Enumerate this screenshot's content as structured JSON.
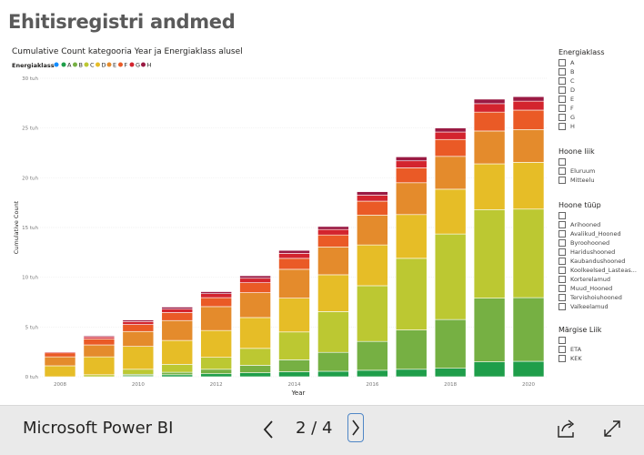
{
  "report": {
    "title": "Ehitisregistri andmed"
  },
  "chart": {
    "title": "Cumulative Count kategooria Year ja Energiaklass alusel",
    "legend_title": "Energiaklass",
    "xlabel": "Year",
    "ylabel": "Cumulative Count",
    "y_ticks": [
      "0 tuh",
      "5 tuh",
      "10 tuh",
      "15 tuh",
      "20 tuh",
      "25 tuh",
      "30 tuh"
    ],
    "x_ticks": [
      "2008",
      "2010",
      "2012",
      "2014",
      "2016",
      "2018",
      "2020"
    ]
  },
  "chart_data": {
    "type": "bar",
    "stacked": true,
    "x": [
      2008,
      2009,
      2010,
      2011,
      2012,
      2013,
      2014,
      2015,
      2016,
      2017,
      2018,
      2019,
      2020
    ],
    "x_tick_labels": [
      "2008",
      "2010",
      "2012",
      "2014",
      "2016",
      "2018",
      "2020"
    ],
    "ylim": [
      0,
      30000
    ],
    "y_tick_labels": [
      "0 tuh",
      "5 tuh",
      "10 tuh",
      "15 tuh",
      "20 tuh",
      "25 tuh",
      "30 tuh"
    ],
    "title": "Cumulative Count kategooria Year ja Energiaklass alusel",
    "xlabel": "Year",
    "ylabel": "Cumulative Count",
    "legend_position": "top-left",
    "grid": true,
    "series": [
      {
        "name": "A",
        "color": "#1f9e4a",
        "values": [
          0,
          0,
          100,
          200,
          300,
          400,
          500,
          550,
          650,
          750,
          850,
          1500,
          1550
        ]
      },
      {
        "name": "B",
        "color": "#76b043",
        "values": [
          0,
          0,
          150,
          250,
          450,
          750,
          1200,
          1900,
          2900,
          3950,
          4900,
          6400,
          6400
        ]
      },
      {
        "name": "C",
        "color": "#bcc832",
        "values": [
          0,
          200,
          500,
          800,
          1200,
          1700,
          2800,
          4100,
          5600,
          7200,
          8600,
          8900,
          8900
        ]
      },
      {
        "name": "D",
        "color": "#e6bd27",
        "values": [
          1100,
          1800,
          2300,
          2400,
          2700,
          3100,
          3400,
          3700,
          4100,
          4400,
          4500,
          4600,
          4700
        ]
      },
      {
        "name": "E",
        "color": "#e48b2c",
        "values": [
          900,
          1200,
          1500,
          2000,
          2400,
          2500,
          2900,
          2800,
          3000,
          3200,
          3300,
          3300,
          3300
        ]
      },
      {
        "name": "F",
        "color": "#ea5a26",
        "values": [
          400,
          600,
          700,
          800,
          900,
          1000,
          1100,
          1200,
          1400,
          1500,
          1700,
          1900,
          1950
        ]
      },
      {
        "name": "G",
        "color": "#d3242e",
        "values": [
          100,
          200,
          300,
          350,
          400,
          450,
          500,
          550,
          600,
          700,
          750,
          850,
          900
        ]
      },
      {
        "name": "H",
        "color": "#9a1a43",
        "values": [
          50,
          100,
          150,
          200,
          200,
          250,
          300,
          300,
          350,
          400,
          400,
          450,
          450
        ]
      }
    ]
  },
  "legend_colors": {
    "A_dot": "#1f9e4a",
    "extra_dot": "#118dff"
  },
  "slicers": [
    {
      "title": "Energiaklass",
      "items": [
        "A",
        "B",
        "C",
        "D",
        "E",
        "F",
        "G",
        "H"
      ]
    },
    {
      "title": "Hoone liik",
      "items": [
        "",
        "Eluruum",
        "Mitteelu"
      ]
    },
    {
      "title": "Hoone tüüp",
      "items": [
        "",
        "Arihooned",
        "Avalikud_Hooned",
        "Byroohooned",
        "Haridushooned",
        "Kaubandushooned",
        "Koolkeelsed_Lasteas...",
        "Korterelamud",
        "Muud_Hooned",
        "Tervishoiuhooned",
        "Valkeelamud"
      ]
    },
    {
      "title": "Märgise Liik",
      "items": [
        "",
        "ETA",
        "KEK"
      ]
    }
  ],
  "footer": {
    "brand": "Microsoft Power BI",
    "page_indicator": "2 / 4",
    "prev_icon": "chevron-left-icon",
    "next_icon": "chevron-right-icon",
    "share_icon": "share-icon",
    "fullscreen_icon": "fullscreen-icon"
  }
}
